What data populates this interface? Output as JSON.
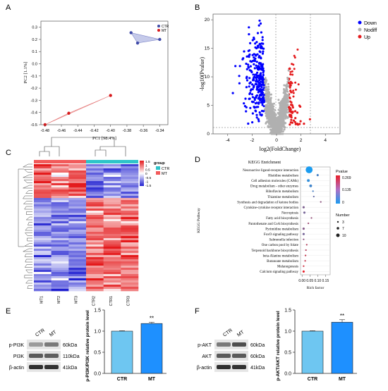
{
  "panels": {
    "a": "A",
    "b": "B",
    "c": "C",
    "d": "D",
    "e": "E",
    "f": "F"
  },
  "colors": {
    "ctr": "#3f4aa8",
    "mt": "#d7191c",
    "down": "#0000ff",
    "up": "#e41a1c",
    "nodiff": "#b0b0b0",
    "bar_ctr": "#6ec6f1",
    "bar_mt": "#1e90ff"
  },
  "chart_data": [
    {
      "type": "scatter",
      "panel": "A",
      "xlabel": "PC1 [98.4%]",
      "ylabel": "PC2 [1.1%]",
      "xticks": [
        "-0.48",
        "-0.46",
        "-0.44",
        "-0.42",
        "-0.40",
        "-0.38",
        "-0.36",
        "-0.34"
      ],
      "yticks": [
        "0.3",
        "0.2",
        "0.1",
        "0.0",
        "-0.1",
        "-0.2",
        "-0.3",
        "-0.4",
        "-0.5"
      ],
      "xlim": [
        -0.485,
        -0.33
      ],
      "ylim": [
        -0.5,
        0.35
      ],
      "legend": [
        "CTR",
        "MT"
      ],
      "series": [
        {
          "name": "CTR",
          "points": [
            [
              -0.375,
              0.255
            ],
            [
              -0.367,
              0.17
            ],
            [
              -0.34,
              0.2
            ]
          ]
        },
        {
          "name": "MT",
          "points": [
            [
              -0.48,
              -0.5
            ],
            [
              -0.451,
              -0.406
            ],
            [
              -0.4,
              -0.26
            ]
          ]
        }
      ]
    },
    {
      "type": "scatter",
      "panel": "B",
      "title": "",
      "xlabel": "log2(FoldChange)",
      "ylabel": "-log10(Pvalue)",
      "xticks": [
        "-4",
        "-2",
        "0",
        "2",
        "4"
      ],
      "yticks": [
        "0",
        "5",
        "10",
        "15",
        "20"
      ],
      "xlim": [
        -5.2,
        5.2
      ],
      "ylim": [
        0,
        21
      ],
      "legend": [
        "Down",
        "Nodiff",
        "Up"
      ]
    },
    {
      "type": "heatmap",
      "panel": "C",
      "columns": [
        "MT1",
        "MT2",
        "MT3",
        "CTR2",
        "CTR1",
        "CTR3"
      ],
      "group_title": "group",
      "groups": [
        "CTR",
        "MT"
      ],
      "scale": [
        "1.5",
        "1",
        "0.5",
        "0",
        "-0.5",
        "-1",
        "-1.5"
      ]
    },
    {
      "type": "scatter",
      "panel": "D",
      "title": "KEGG Enrichment",
      "xlabel": "Rich factor",
      "ylabel": "KEGG Pathway",
      "xticks": [
        "0.00",
        "0.05",
        "0.10",
        "0.15"
      ],
      "xlim": [
        -0.01,
        0.18
      ],
      "pvalue_title": "Pvalue",
      "pvalue_scale": [
        "0.269",
        "0.135",
        "0"
      ],
      "number_title": "Number",
      "number_scale": [
        "3",
        "7",
        "10"
      ],
      "pathways": [
        {
          "name": "Neuroactive ligand-receptor interaction",
          "rich": 0.045,
          "p": 0.0,
          "n": 10
        },
        {
          "name": "Histidine metabolism",
          "rich": 0.1,
          "p": 0.06,
          "n": 2
        },
        {
          "name": "Cell adhesion molecules (CAMs)",
          "rich": 0.04,
          "p": 0.03,
          "n": 3
        },
        {
          "name": "Drug metabolism - other enzymes",
          "rich": 0.055,
          "p": 0.05,
          "n": 3
        },
        {
          "name": "Riboflavin metabolism",
          "rich": 0.07,
          "p": 0.06,
          "n": 1
        },
        {
          "name": "Thiamine metabolism",
          "rich": 0.075,
          "p": 0.1,
          "n": 1
        },
        {
          "name": "Synthesis and degradation of ketone bodies",
          "rich": 0.12,
          "p": 0.15,
          "n": 1
        },
        {
          "name": "Cytokine-cytokine receptor interaction",
          "rich": 0.01,
          "p": 0.13,
          "n": 2
        },
        {
          "name": "Necroptosis",
          "rich": 0.015,
          "p": 0.12,
          "n": 2
        },
        {
          "name": "Fatty acid biosynthesis",
          "rich": 0.06,
          "p": 0.16,
          "n": 1
        },
        {
          "name": "Pantothenate and CoA biosynthesis",
          "rich": 0.04,
          "p": 0.17,
          "n": 1
        },
        {
          "name": "Pyrimidine metabolism",
          "rich": 0.01,
          "p": 0.14,
          "n": 2
        },
        {
          "name": "FoxO signaling pathway",
          "rich": 0.01,
          "p": 0.12,
          "n": 2
        },
        {
          "name": "Salmonella infection",
          "rich": 0.01,
          "p": 0.15,
          "n": 1
        },
        {
          "name": "One carbon pool by folate",
          "rich": 0.03,
          "p": 0.2,
          "n": 1
        },
        {
          "name": "Terpenoid backbone biosynthesis",
          "rich": 0.025,
          "p": 0.2,
          "n": 1
        },
        {
          "name": "beta-Alanine metabolism",
          "rich": 0.022,
          "p": 0.22,
          "n": 1
        },
        {
          "name": "Butanoate metabolism",
          "rich": 0.02,
          "p": 0.22,
          "n": 1
        },
        {
          "name": "Melanogenesis",
          "rich": 0.01,
          "p": 0.24,
          "n": 1
        },
        {
          "name": "Calcium signaling pathway",
          "rich": 0.01,
          "p": 0.269,
          "n": 2
        }
      ]
    },
    {
      "type": "bar",
      "panel": "E",
      "categories": [
        "CTR",
        "MT"
      ],
      "values": [
        1.0,
        1.18
      ],
      "errors": [
        0.01,
        0.03
      ],
      "ylabel": "p-PI3K/PI3K relative protein level",
      "yticks": [
        "0.0",
        "0.5",
        "1.0",
        "1.5"
      ],
      "ylim": [
        0,
        1.5
      ],
      "significance": "**"
    },
    {
      "type": "bar",
      "panel": "F",
      "categories": [
        "CTR",
        "MT"
      ],
      "values": [
        1.0,
        1.21
      ],
      "errors": [
        0.01,
        0.06
      ],
      "ylabel": "p-AKT/AKT relative protein level",
      "yticks": [
        "0.0",
        "0.5",
        "1.0",
        "1.5"
      ],
      "ylim": [
        0,
        1.5
      ],
      "significance": "**"
    }
  ],
  "blots": {
    "e": {
      "lanes": [
        "CTR",
        "MT"
      ],
      "rows": [
        {
          "label": "p-PI3K",
          "kda": "60kDa"
        },
        {
          "label": "PI3K",
          "kda": "110kDa"
        },
        {
          "label": "β-actin",
          "kda": "41kDa"
        }
      ]
    },
    "f": {
      "lanes": [
        "CTR",
        "MT"
      ],
      "rows": [
        {
          "label": "p-AKT",
          "kda": "60kDa"
        },
        {
          "label": "AKT",
          "kda": "60kDa"
        },
        {
          "label": "β-actin",
          "kda": "41kDa"
        }
      ]
    }
  }
}
